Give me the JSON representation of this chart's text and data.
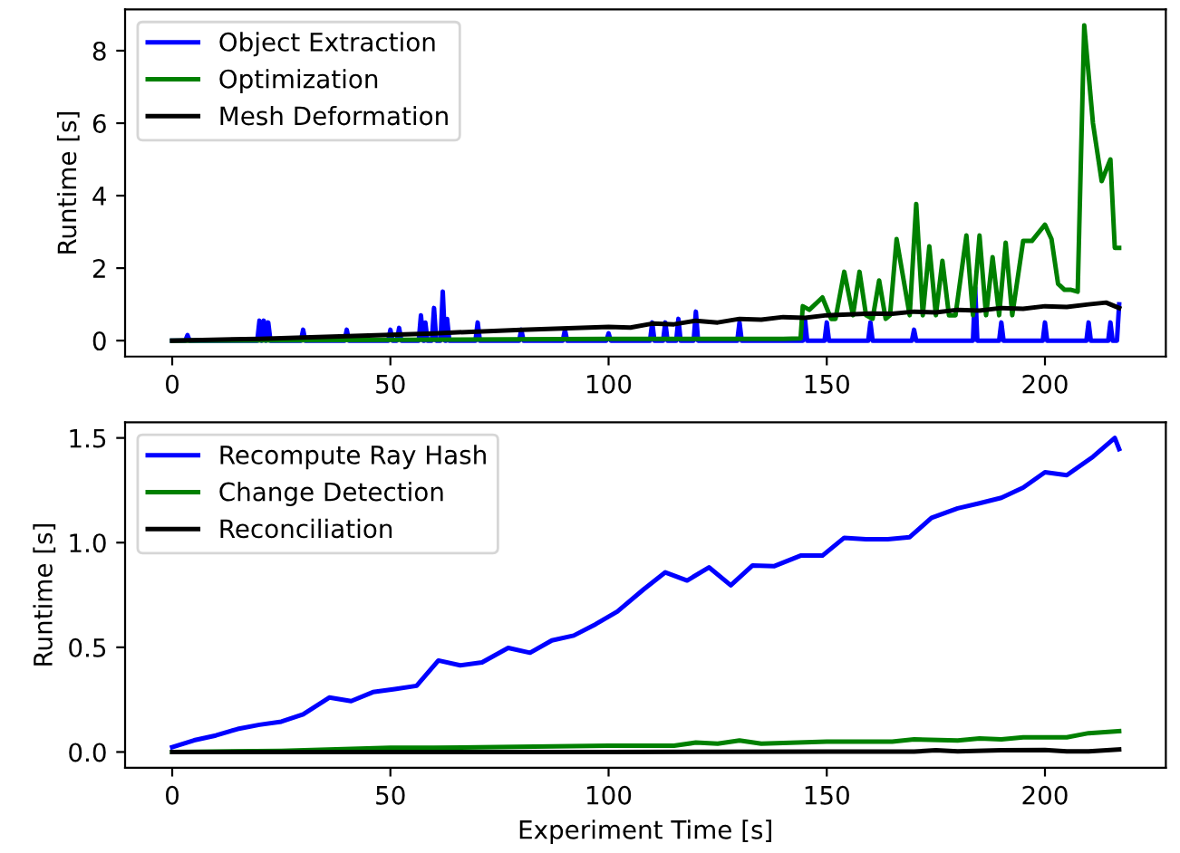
{
  "chart_data": [
    {
      "type": "line",
      "ylabel": "Runtime [s]",
      "xlim": [
        -10.8,
        227.7
      ],
      "ylim": [
        -0.44,
        9.14
      ],
      "xticks": [
        0,
        50,
        100,
        150,
        200
      ],
      "yticks": [
        0,
        2,
        4,
        6,
        8
      ],
      "legend": "top left",
      "grid": false,
      "series": [
        {
          "name": "Object Extraction",
          "color": "#0000ff",
          "x": [
            0,
            3,
            3.5,
            4,
            19.5,
            20,
            20.5,
            21,
            21.5,
            22,
            22.5,
            29.5,
            30,
            30.5,
            39.5,
            40,
            40.5,
            49.5,
            50,
            50.5,
            51.5,
            52,
            52.5,
            56.5,
            57,
            57.5,
            57.8,
            58,
            58.5,
            59.5,
            60,
            60.5,
            61.5,
            62,
            62.5,
            62.8,
            63,
            63.5,
            69.5,
            70,
            70.5,
            79.5,
            80,
            80.5,
            89.5,
            90,
            90.5,
            99.5,
            100,
            100.5,
            109.5,
            110,
            110.5,
            112.5,
            113,
            113.5,
            115.5,
            116,
            116.5,
            119.5,
            120,
            120.5,
            129.5,
            130,
            130.5,
            144.5,
            145,
            145.5,
            149.5,
            150,
            150.5,
            159.5,
            160,
            160.5,
            169.5,
            170,
            170.5,
            183.5,
            184,
            184.5,
            189.5,
            190,
            190.5,
            199.5,
            200,
            200.5,
            209.5,
            210,
            210.5,
            214.5,
            215,
            215.5,
            216.5,
            217
          ],
          "values": [
            0,
            0,
            0.15,
            0,
            0,
            0.55,
            0,
            0.55,
            0,
            0.5,
            0,
            0,
            0.3,
            0,
            0,
            0.3,
            0,
            0,
            0.3,
            0,
            0,
            0.35,
            0,
            0,
            0.7,
            0,
            0,
            0.5,
            0,
            0,
            0.9,
            0,
            0,
            1.35,
            0,
            0,
            0.6,
            0,
            0,
            0.5,
            0,
            0,
            0.3,
            0,
            0,
            0.3,
            0,
            0,
            0.2,
            0,
            0,
            0.5,
            0,
            0,
            0.5,
            0,
            0,
            0.6,
            0,
            0,
            0.8,
            0,
            0,
            0.5,
            0,
            0,
            0.6,
            0,
            0,
            0.5,
            0,
            0,
            0.5,
            0,
            0,
            0.3,
            0,
            0,
            1.47,
            0,
            0,
            0.5,
            0,
            0,
            0.5,
            0,
            0,
            0.5,
            0,
            0,
            0.5,
            0,
            0,
            1.0
          ]
        },
        {
          "name": "Optimization",
          "color": "#008000",
          "x": [
            0,
            50,
            100,
            140,
            144,
            144.5,
            146,
            149,
            151,
            152,
            154,
            156,
            157.5,
            159,
            160.5,
            162,
            163.5,
            164.5,
            166,
            169,
            170.5,
            172,
            173.5,
            175,
            176.5,
            178,
            179.5,
            182,
            183.5,
            185,
            186.5,
            188,
            189.5,
            191,
            192.5,
            195,
            197,
            200,
            201.5,
            203,
            204.5,
            206,
            207.5,
            209,
            211,
            213,
            215,
            216,
            217
          ],
          "values": [
            0,
            0.02,
            0.05,
            0.05,
            0.06,
            0.95,
            0.85,
            1.19,
            0.6,
            0.6,
            1.9,
            0.7,
            1.9,
            0.7,
            0.6,
            1.66,
            0.6,
            0.7,
            2.8,
            0.7,
            3.77,
            0.7,
            2.6,
            0.7,
            2.2,
            0.7,
            0.7,
            2.9,
            0.7,
            2.9,
            0.7,
            2.3,
            0.7,
            2.7,
            0.7,
            2.75,
            2.75,
            3.2,
            2.8,
            1.57,
            1.4,
            1.4,
            1.35,
            8.7,
            6.0,
            4.4,
            5.0,
            2.56,
            2.56
          ]
        },
        {
          "name": "Mesh Deformation",
          "color": "#000000",
          "x": [
            0,
            20,
            40,
            60,
            80,
            100,
            105,
            110,
            115,
            120,
            125,
            130,
            135,
            140,
            145,
            150,
            155,
            160,
            165,
            170,
            175,
            180,
            185,
            190,
            195,
            200,
            205,
            210,
            214,
            217
          ],
          "values": [
            0,
            0.05,
            0.12,
            0.2,
            0.3,
            0.38,
            0.36,
            0.47,
            0.45,
            0.55,
            0.5,
            0.6,
            0.58,
            0.65,
            0.63,
            0.7,
            0.72,
            0.75,
            0.74,
            0.8,
            0.78,
            0.85,
            0.83,
            0.9,
            0.88,
            0.95,
            0.93,
            1.0,
            1.05,
            0.9
          ]
        }
      ]
    },
    {
      "type": "line",
      "xlabel": "Experiment Time [s]",
      "ylabel": "Runtime [s]",
      "xlim": [
        -10.8,
        227.7
      ],
      "ylim": [
        -0.075,
        1.575
      ],
      "xticks": [
        0,
        50,
        100,
        150,
        200
      ],
      "yticks": [
        {
          "value": 0,
          "label": "0.0"
        },
        0.5,
        {
          "value": 1,
          "label": "1.0"
        },
        1.5
      ],
      "legend": "top left",
      "grid": false,
      "series": [
        {
          "name": "Recompute Ray Hash",
          "color": "#0000ff",
          "x": [
            0,
            5,
            10,
            15,
            20,
            25,
            30,
            36,
            41,
            46,
            51,
            56,
            61,
            66,
            71,
            77,
            82,
            87,
            92,
            97,
            102,
            108,
            113,
            118,
            123,
            128,
            133,
            138,
            144,
            149,
            154,
            159,
            164,
            169,
            174,
            180,
            185,
            190,
            195,
            200,
            205,
            211,
            216,
            217
          ],
          "values": [
            0.023,
            0.056,
            0.079,
            0.11,
            0.13,
            0.145,
            0.18,
            0.26,
            0.243,
            0.286,
            0.3,
            0.316,
            0.437,
            0.414,
            0.428,
            0.497,
            0.474,
            0.533,
            0.556,
            0.61,
            0.671,
            0.776,
            0.858,
            0.819,
            0.882,
            0.796,
            0.891,
            0.888,
            0.938,
            0.938,
            1.023,
            1.016,
            1.016,
            1.026,
            1.118,
            1.164,
            1.188,
            1.214,
            1.263,
            1.336,
            1.322,
            1.41,
            1.5,
            1.447
          ]
        },
        {
          "name": "Change Detection",
          "color": "#008000",
          "x": [
            0,
            25,
            50,
            60,
            100,
            115,
            120,
            125,
            130,
            135,
            150,
            165,
            170,
            180,
            185,
            190,
            195,
            205,
            210,
            217
          ],
          "values": [
            0,
            0.005,
            0.02,
            0.02,
            0.03,
            0.03,
            0.045,
            0.04,
            0.055,
            0.04,
            0.05,
            0.05,
            0.06,
            0.055,
            0.065,
            0.06,
            0.07,
            0.07,
            0.09,
            0.1
          ]
        },
        {
          "name": "Reconciliation",
          "color": "#000000",
          "x": [
            0,
            100,
            150,
            170,
            175,
            180,
            190,
            200,
            205,
            210,
            217
          ],
          "values": [
            0,
            0,
            0.002,
            0.002,
            0.008,
            0.003,
            0.008,
            0.01,
            0.003,
            0.003,
            0.012
          ]
        }
      ]
    }
  ]
}
